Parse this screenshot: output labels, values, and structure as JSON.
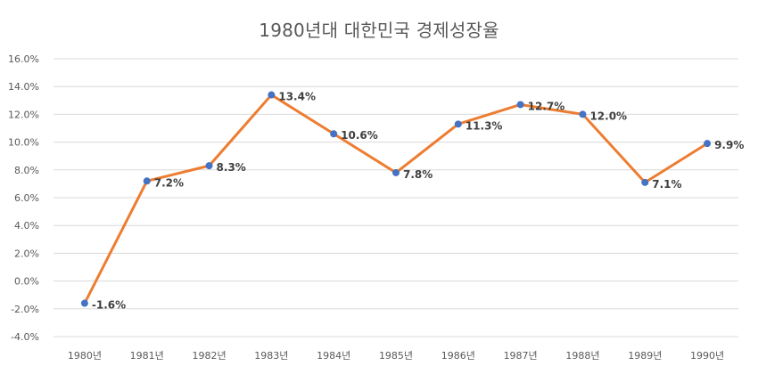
{
  "chart_data": {
    "type": "line",
    "title": "1980년대 대한민국 경제성장율",
    "xlabel": "",
    "ylabel": "",
    "categories": [
      "1980년",
      "1981년",
      "1982년",
      "1983년",
      "1984년",
      "1985년",
      "1986년",
      "1987년",
      "1988년",
      "1989년",
      "1990년"
    ],
    "series": [
      {
        "values": [
          -1.6,
          7.2,
          8.3,
          13.4,
          10.6,
          7.8,
          11.3,
          12.7,
          12.0,
          7.1,
          9.9
        ],
        "data_labels": [
          "-1.6%",
          "7.2%",
          "8.3%",
          "13.4%",
          "10.6%",
          "7.8%",
          "11.3%",
          "12.7%",
          "12.0%",
          "7.1%",
          "9.9%"
        ]
      }
    ],
    "ylim": [
      -4,
      16
    ],
    "yticks": [
      -4,
      -2,
      0,
      2,
      4,
      6,
      8,
      10,
      12,
      14,
      16
    ],
    "ytick_labels": [
      "-4.0%",
      "-2.0%",
      "0.0%",
      "2.0%",
      "4.0%",
      "6.0%",
      "8.0%",
      "10.0%",
      "12.0%",
      "14.0%",
      "16.0%"
    ],
    "grid": true,
    "legend": "none",
    "colors": {
      "line": "#ED7D31",
      "marker": "#4472C4",
      "grid": "#D9D9D9",
      "text": "#595959"
    }
  }
}
